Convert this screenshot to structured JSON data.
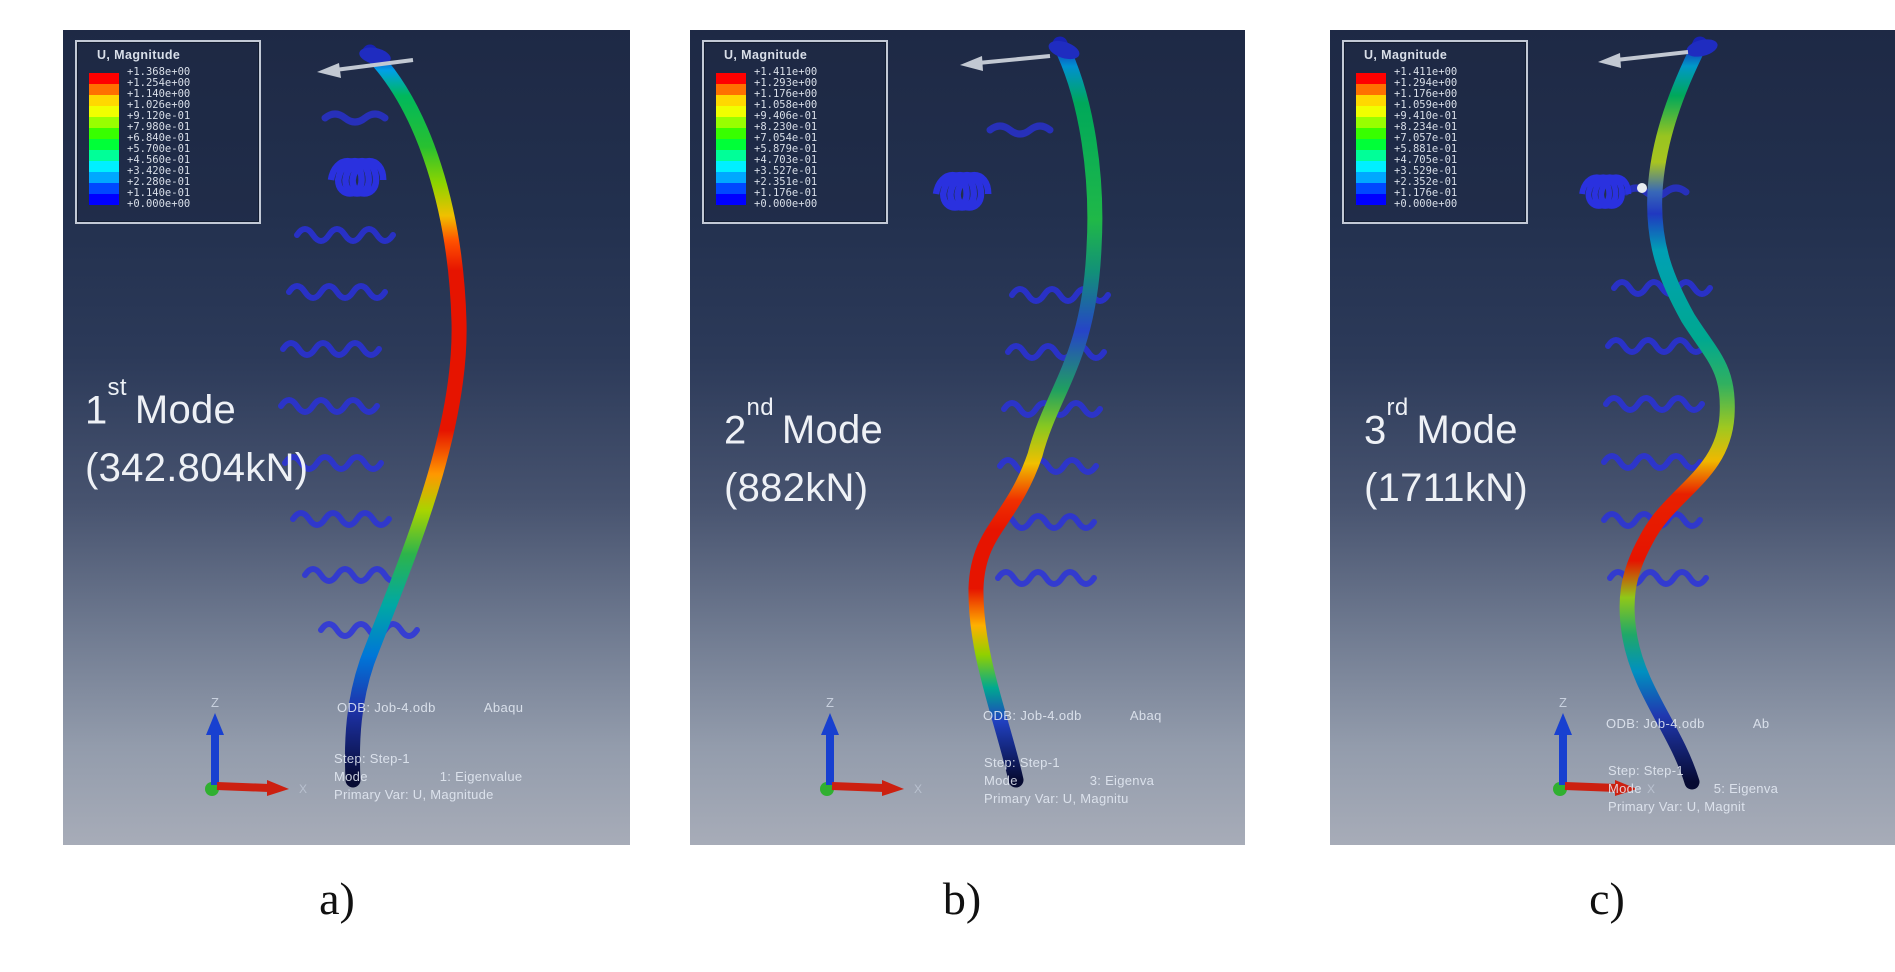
{
  "figure": {
    "background": "#ffffff",
    "viewport_bg_top": "#1e2945",
    "viewport_bg_bottom": "#a7acb8",
    "spring_symbol_color": "#2a31df",
    "spectrum_colors": [
      "#ff0000",
      "#ff7000",
      "#ffd800",
      "#f0ff00",
      "#98ff00",
      "#38ff00",
      "#00ff38",
      "#00ff98",
      "#00f0ff",
      "#00a8ff",
      "#0048ff",
      "#0000ff"
    ]
  },
  "panels": [
    {
      "caption": "a)",
      "mode_label": {
        "number": "1",
        "suffix": "st",
        "text": "Mode",
        "load": "(342.804kN)"
      },
      "legend": {
        "title": "U, Magnitude",
        "values": [
          "+1.368e+00",
          "+1.254e+00",
          "+1.140e+00",
          "+1.026e+00",
          "+9.120e-01",
          "+7.980e-01",
          "+6.840e-01",
          "+5.700e-01",
          "+4.560e-01",
          "+3.420e-01",
          "+2.280e-01",
          "+1.140e-01",
          "+0.000e+00"
        ]
      },
      "status": {
        "odb": "ODB: Job-4.odb",
        "app": "Abaqu",
        "step": "Step: Step-1",
        "mode_left": "Mode",
        "mode_right": "1: Eigenvalue",
        "primary": "Primary Var: U, Magnitude"
      },
      "triad": {
        "z": "Z",
        "x": "X"
      }
    },
    {
      "caption": "b)",
      "mode_label": {
        "number": "2",
        "suffix": "nd",
        "text": "Mode",
        "load": "(882kN)"
      },
      "legend": {
        "title": "U, Magnitude",
        "values": [
          "+1.411e+00",
          "+1.293e+00",
          "+1.176e+00",
          "+1.058e+00",
          "+9.406e-01",
          "+8.230e-01",
          "+7.054e-01",
          "+5.879e-01",
          "+4.703e-01",
          "+3.527e-01",
          "+2.351e-01",
          "+1.176e-01",
          "+0.000e+00"
        ]
      },
      "status": {
        "odb": "ODB: Job-4.odb",
        "app": "Abaq",
        "step": "Step: Step-1",
        "mode_left": "Mode",
        "mode_right": "3: Eigenva",
        "primary": "Primary Var: U, Magnitu"
      },
      "triad": {
        "z": "Z",
        "x": "X"
      }
    },
    {
      "caption": "c)",
      "mode_label": {
        "number": "3",
        "suffix": "rd",
        "text": "Mode",
        "load": "(1711kN)"
      },
      "legend": {
        "title": "U, Magnitude",
        "values": [
          "+1.411e+00",
          "+1.294e+00",
          "+1.176e+00",
          "+1.059e+00",
          "+9.410e-01",
          "+8.234e-01",
          "+7.057e-01",
          "+5.881e-01",
          "+4.705e-01",
          "+3.529e-01",
          "+2.352e-01",
          "+1.176e-01",
          "+0.000e+00"
        ]
      },
      "status": {
        "odb": "ODB: Job-4.odb",
        "app": "Ab",
        "step": "Step: Step-1",
        "mode_left": "Mode",
        "mode_right": "5: Eigenva",
        "primary": "Primary Var: U, Magnit"
      },
      "triad": {
        "z": "Z",
        "x": "X"
      }
    }
  ]
}
